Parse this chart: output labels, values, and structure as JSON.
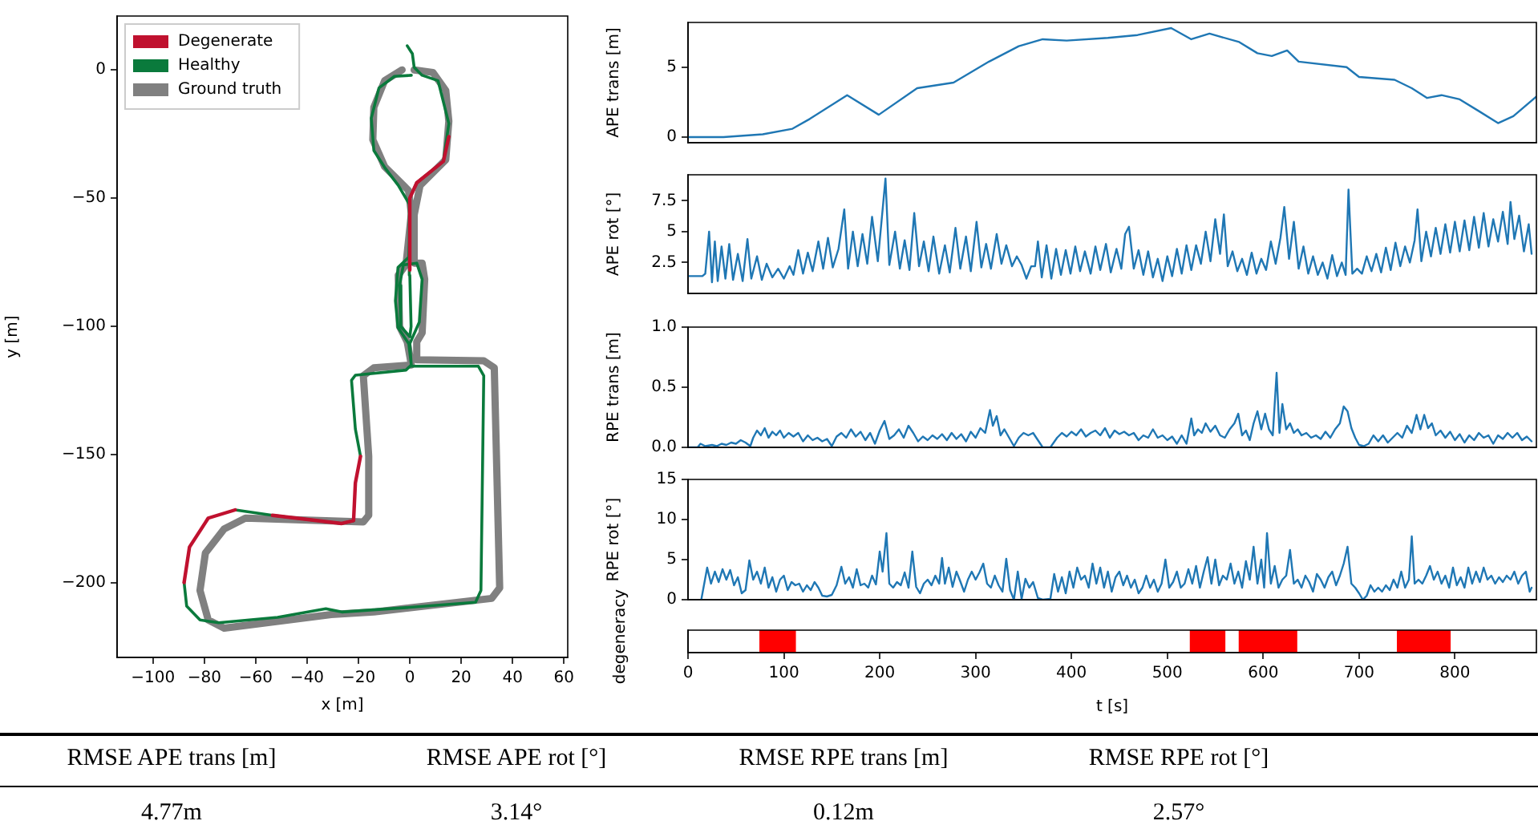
{
  "chart_data": [
    {
      "type": "line",
      "xlabel": "x [m]",
      "ylabel": "y [m]",
      "legend": "top left",
      "xlim": [
        -114,
        61.5
      ],
      "ylim": [
        -229,
        21
      ],
      "xticks": [
        {
          "value": -100,
          "label": "−100"
        },
        {
          "value": -80,
          "label": "−80"
        },
        {
          "value": -60,
          "label": "−60"
        },
        {
          "value": -40,
          "label": "−40"
        },
        {
          "value": -20,
          "label": "−20"
        },
        0,
        20,
        40,
        60
      ],
      "yticks": [
        {
          "value": -200,
          "label": "−200"
        },
        {
          "value": -150,
          "label": "−150"
        },
        {
          "value": -100,
          "label": "−100"
        },
        {
          "value": -50,
          "label": "−50"
        },
        0
      ],
      "series": [
        {
          "name": "Degenerate",
          "color": "#c0112f",
          "x": [
            15.2,
            13.1,
            2.7,
            0,
            0
          ],
          "values": [
            -26,
            -35.6,
            -44,
            -50,
            -78
          ]
        },
        {
          "color": "#c0112f",
          "x": [
            -19.2,
            -21.2,
            -21.9,
            -26.5,
            -53.5
          ],
          "values": [
            -150.6,
            -161,
            -175.7,
            -176.8,
            -173.6
          ]
        },
        {
          "color": "#c0112f",
          "x": [
            -68,
            -78.5,
            -85.8,
            -87.9
          ],
          "values": [
            -171.5,
            -174.7,
            -186,
            -199.8
          ]
        },
        {
          "name": "Healthy",
          "color": "#0a7a3c",
          "x": [
            -1.0,
            1.0,
            1.7,
            4.8,
            11,
            15.2,
            13.1,
            2.7,
            0,
            0,
            -0.4,
            -4.6,
            -5.6,
            -4.6,
            -0.4,
            0.6,
            -1.5,
            -21.2,
            -22.7,
            -21.2,
            -19.2,
            -21.2,
            -21.9,
            -26.5,
            -53.5,
            -68,
            -78.5,
            -85.8,
            -87.9,
            -86.9,
            -81.7,
            -74.4,
            -51.5,
            -32.7,
            -26.5,
            -1.5,
            25.6,
            27.7,
            28.8,
            26.7,
            0.6,
            0,
            3.7,
            4.8,
            2.7,
            -2.5,
            -4,
            -3.5,
            0,
            0.5,
            0,
            -0.2,
            -4.5,
            -9.8,
            -14,
            -15,
            -12,
            -6,
            0.6
          ],
          "values": [
            9.4,
            6.3,
            1.0,
            -2.1,
            -4.2,
            -20.9,
            -35.6,
            -44,
            -50,
            -60.7,
            -73,
            -77,
            -90,
            -100.4,
            -106.7,
            -115,
            -117,
            -119,
            -121,
            -140,
            -150.6,
            null,
            -175.7,
            -176.8,
            -173.6,
            -171.5,
            null,
            null,
            -199.8,
            -209,
            -214.4,
            -215.5,
            -213.4,
            -210,
            -211.3,
            -209.6,
            -207.5,
            -202.9,
            -119.2,
            -115.5,
            -115.5,
            -106.7,
            -98.3,
            -81.6,
            -75.3,
            -76,
            -84,
            -100,
            -104,
            -100,
            -80,
            -52.3,
            -45,
            -38,
            -31.4,
            -18.8,
            -7,
            -2.5,
            -2.1
          ]
        },
        {
          "name": "Ground truth",
          "color": "#808080",
          "x": [
            1.7,
            9,
            14,
            15.2,
            14,
            4,
            1.7,
            1.7,
            4.8,
            5.8,
            4.8,
            2.7,
            2.7,
            28.8,
            32.9,
            35,
            31.9,
            -14,
            -30.6,
            -72.3,
            -78.5,
            -81.7,
            -79.6,
            -72.3,
            -64,
            -18.1,
            -16,
            -16,
            -18.1,
            -14,
            0.6,
            -1,
            -4,
            -4.5,
            -1.5,
            0.6,
            -0.5,
            -9.8,
            -14.4,
            -14,
            -9.8,
            -3
          ],
          "values": [
            0,
            -1,
            -8,
            -20,
            -35,
            -45,
            -56.5,
            -75.3,
            -75.3,
            -81.6,
            -102.5,
            -106,
            -113,
            -113.4,
            -116.1,
            -201.9,
            -206,
            -211.3,
            -212.3,
            -217.6,
            -214.4,
            -202.9,
            -188.3,
            -178.9,
            -174.7,
            -176.2,
            -173.6,
            -150.6,
            -119.2,
            -116.1,
            -115,
            -106,
            -100,
            -80,
            -76,
            -56,
            -47,
            -37.7,
            -27.2,
            -14.6,
            -4.2,
            0
          ]
        }
      ]
    },
    {
      "type": "line",
      "ylabel": "APE trans [m]",
      "tick_labels": "y",
      "color": "#1f77b4",
      "xlim": [
        0,
        885
      ],
      "ylim": [
        -0.4,
        8.2
      ],
      "yticks": [
        0,
        5
      ],
      "x": [
        0,
        37,
        78,
        109,
        127,
        166,
        199,
        239,
        277,
        314,
        345,
        370,
        395,
        438,
        469,
        504,
        525,
        544,
        575,
        594,
        609,
        625,
        637,
        687,
        700,
        737,
        755,
        771,
        786,
        805,
        824,
        845,
        861,
        885
      ],
      "values": [
        0,
        0,
        0.2,
        0.6,
        1.3,
        3.0,
        1.6,
        3.5,
        3.9,
        5.4,
        6.5,
        7.0,
        6.9,
        7.1,
        7.3,
        7.8,
        7.0,
        7.4,
        6.8,
        6.0,
        5.8,
        6.2,
        5.4,
        5.0,
        4.3,
        4.1,
        3.5,
        2.8,
        3.0,
        2.7,
        1.9,
        1.0,
        1.5,
        2.9
      ]
    },
    {
      "type": "line",
      "ylabel": "APE rot [°]",
      "tick_labels": "y",
      "color": "#1f77b4",
      "xlim": [
        0,
        885
      ],
      "ylim": [
        0,
        9.6
      ],
      "yticks": [
        2.5,
        5.0,
        7.5
      ],
      "x": [
        0,
        15,
        18,
        22,
        25,
        28,
        31,
        35,
        39,
        43,
        47,
        52,
        57,
        62,
        66,
        72,
        77,
        82,
        88,
        94,
        100,
        106,
        110,
        115,
        120,
        125,
        130,
        136,
        141,
        146,
        151,
        157,
        163,
        167,
        172,
        177,
        182,
        187,
        192,
        198,
        206,
        210,
        216,
        221,
        226,
        231,
        236,
        241,
        246,
        251,
        256,
        262,
        268,
        273,
        279,
        284,
        290,
        295,
        301,
        306,
        311,
        316,
        322,
        327,
        332,
        338,
        343,
        348,
        353,
        358,
        362,
        365,
        369,
        374,
        379,
        384,
        389,
        394,
        399,
        404,
        409,
        414,
        420,
        425,
        430,
        436,
        441,
        447,
        452,
        456,
        460,
        465,
        470,
        475,
        480,
        485,
        490,
        495,
        500,
        505,
        510,
        515,
        520,
        525,
        530,
        535,
        540,
        545,
        550,
        555,
        559,
        563,
        568,
        573,
        578,
        583,
        588,
        593,
        598,
        603,
        608,
        613,
        618,
        622,
        627,
        632,
        637,
        642,
        647,
        652,
        657,
        662,
        667,
        672,
        677,
        682,
        686,
        689,
        693,
        698,
        703,
        708,
        713,
        718,
        723,
        728,
        733,
        738,
        743,
        748,
        753,
        758,
        761,
        765,
        770,
        775,
        780,
        785,
        790,
        795,
        800,
        805,
        810,
        815,
        820,
        825,
        830,
        835,
        840,
        845,
        850,
        855,
        858,
        862,
        867,
        872,
        877,
        880
      ],
      "values": [
        1.4,
        1.4,
        1.6,
        5.0,
        0.9,
        4.2,
        1.0,
        3.8,
        1.2,
        4.0,
        1.1,
        3.2,
        1.0,
        4.4,
        1.2,
        3.0,
        1.1,
        2.4,
        1.3,
        2.0,
        1.2,
        2.2,
        1.5,
        3.5,
        1.6,
        3.3,
        1.8,
        4.2,
        2.0,
        4.5,
        2.1,
        3.6,
        6.8,
        2.0,
        5.0,
        2.2,
        4.8,
        2.4,
        6.2,
        2.6,
        9.3,
        2.3,
        5.0,
        2.0,
        4.3,
        1.9,
        6.5,
        2.2,
        4.2,
        1.8,
        4.6,
        1.6,
        3.9,
        1.7,
        5.3,
        2.0,
        4.6,
        1.8,
        5.8,
        2.1,
        4.0,
        2.0,
        4.8,
        2.4,
        3.9,
        2.2,
        3.0,
        2.3,
        1.2,
        2.2,
        2.2,
        4.2,
        1.3,
        3.9,
        1.2,
        3.6,
        1.5,
        3.5,
        1.6,
        3.8,
        1.8,
        3.4,
        1.6,
        3.8,
        1.9,
        4.0,
        1.7,
        3.6,
        2.0,
        4.8,
        5.4,
        2.0,
        3.5,
        1.5,
        3.4,
        1.3,
        2.8,
        1.0,
        3.0,
        1.4,
        3.6,
        1.6,
        3.9,
        1.9,
        3.9,
        2.4,
        5.0,
        2.6,
        6.0,
        3.2,
        6.4,
        2.2,
        3.4,
        1.8,
        2.8,
        1.5,
        3.3,
        1.6,
        2.8,
        1.9,
        4.2,
        2.4,
        4.5,
        7.0,
        2.8,
        5.8,
        2.0,
        3.8,
        1.6,
        3.0,
        1.5,
        2.5,
        1.2,
        3.1,
        1.4,
        2.5,
        1.5,
        8.4,
        1.6,
        2.0,
        1.6,
        3.0,
        1.8,
        3.2,
        1.7,
        3.7,
        1.9,
        4.1,
        2.2,
        3.8,
        2.5,
        4.3,
        6.8,
        2.6,
        5.0,
        3.0,
        5.3,
        3.2,
        5.6,
        3.3,
        5.8,
        3.4,
        5.9,
        3.5,
        6.2,
        3.7,
        6.5,
        3.8,
        6.0,
        4.2,
        6.6,
        4.0,
        7.4,
        4.4,
        6.3,
        3.4,
        5.6,
        3.2
      ]
    },
    {
      "type": "line",
      "ylabel": "RPE trans [m]",
      "tick_labels": "y",
      "color": "#1f77b4",
      "xlim": [
        0,
        885
      ],
      "ylim": [
        0,
        1
      ],
      "yticks": [
        {
          "value": 0,
          "label": "0.0"
        },
        0.5,
        {
          "value": 1,
          "label": "1.0"
        }
      ],
      "x": [
        0,
        10,
        13,
        18,
        25,
        30,
        35,
        40,
        45,
        50,
        55,
        60,
        65,
        68,
        72,
        76,
        80,
        84,
        88,
        92,
        96,
        100,
        105,
        110,
        115,
        120,
        125,
        130,
        135,
        140,
        145,
        150,
        155,
        160,
        165,
        170,
        175,
        180,
        185,
        190,
        195,
        200,
        205,
        210,
        215,
        220,
        225,
        230,
        235,
        240,
        245,
        250,
        255,
        260,
        265,
        270,
        275,
        280,
        285,
        290,
        295,
        300,
        305,
        310,
        315,
        318,
        322,
        326,
        330,
        335,
        340,
        345,
        350,
        355,
        360,
        365,
        370,
        378,
        385,
        390,
        395,
        400,
        405,
        410,
        415,
        420,
        425,
        430,
        435,
        440,
        445,
        450,
        455,
        460,
        465,
        470,
        475,
        480,
        485,
        490,
        495,
        500,
        505,
        510,
        515,
        520,
        525,
        528,
        532,
        536,
        540,
        545,
        550,
        555,
        560,
        565,
        570,
        574,
        578,
        582,
        586,
        590,
        594,
        598,
        602,
        606,
        610,
        614,
        617,
        620,
        624,
        628,
        632,
        636,
        640,
        645,
        650,
        655,
        660,
        665,
        670,
        675,
        680,
        684,
        688,
        692,
        696,
        700,
        705,
        710,
        715,
        720,
        725,
        730,
        735,
        740,
        745,
        750,
        755,
        760,
        764,
        768,
        772,
        776,
        780,
        785,
        790,
        795,
        800,
        805,
        810,
        815,
        820,
        825,
        830,
        835,
        840,
        845,
        850,
        855,
        860,
        865,
        870,
        875,
        880
      ],
      "values": [
        0.0,
        0.0,
        0.03,
        0.01,
        0.02,
        0.01,
        0.03,
        0.02,
        0.04,
        0.03,
        0.06,
        0.04,
        0.01,
        0.08,
        0.14,
        0.1,
        0.16,
        0.08,
        0.13,
        0.1,
        0.14,
        0.08,
        0.12,
        0.09,
        0.12,
        0.05,
        0.1,
        0.06,
        0.08,
        0.05,
        0.07,
        0.01,
        0.09,
        0.12,
        0.08,
        0.15,
        0.09,
        0.13,
        0.06,
        0.12,
        0.03,
        0.14,
        0.22,
        0.07,
        0.1,
        0.15,
        0.08,
        0.18,
        0.12,
        0.05,
        0.09,
        0.06,
        0.1,
        0.07,
        0.11,
        0.06,
        0.12,
        0.07,
        0.11,
        0.05,
        0.13,
        0.08,
        0.16,
        0.12,
        0.31,
        0.18,
        0.26,
        0.1,
        0.15,
        0.08,
        0.01,
        0.08,
        0.12,
        0.1,
        0.12,
        0.06,
        0.0,
        0.0,
        0.08,
        0.12,
        0.09,
        0.13,
        0.1,
        0.15,
        0.09,
        0.12,
        0.14,
        0.1,
        0.16,
        0.08,
        0.14,
        0.11,
        0.13,
        0.1,
        0.12,
        0.06,
        0.1,
        0.08,
        0.15,
        0.08,
        0.1,
        0.06,
        0.09,
        0.03,
        0.1,
        0.03,
        0.24,
        0.1,
        0.15,
        0.12,
        0.2,
        0.13,
        0.18,
        0.1,
        0.08,
        0.15,
        0.2,
        0.28,
        0.1,
        0.14,
        0.06,
        0.2,
        0.3,
        0.15,
        0.28,
        0.15,
        0.1,
        0.62,
        0.12,
        0.36,
        0.15,
        0.2,
        0.12,
        0.15,
        0.1,
        0.12,
        0.08,
        0.1,
        0.07,
        0.13,
        0.08,
        0.15,
        0.2,
        0.34,
        0.3,
        0.16,
        0.08,
        0.02,
        0.01,
        0.03,
        0.1,
        0.05,
        0.1,
        0.04,
        0.08,
        0.12,
        0.08,
        0.18,
        0.12,
        0.27,
        0.15,
        0.27,
        0.16,
        0.2,
        0.1,
        0.14,
        0.08,
        0.13,
        0.06,
        0.11,
        0.04,
        0.1,
        0.06,
        0.12,
        0.08,
        0.1,
        0.03,
        0.1,
        0.07,
        0.12,
        0.08,
        0.12,
        0.06,
        0.09,
        0.05
      ]
    },
    {
      "type": "line",
      "ylabel": "RPE rot [°]",
      "tick_labels": "y",
      "color": "#1f77b4",
      "xlim": [
        0,
        885
      ],
      "ylim": [
        0,
        15
      ],
      "yticks": [
        0,
        5,
        10,
        15
      ],
      "x": [
        14,
        20,
        24,
        28,
        32,
        36,
        40,
        44,
        48,
        52,
        56,
        60,
        64,
        68,
        72,
        76,
        80,
        84,
        88,
        92,
        96,
        100,
        104,
        108,
        112,
        116,
        120,
        124,
        128,
        132,
        136,
        140,
        145,
        150,
        155,
        160,
        164,
        168,
        172,
        176,
        180,
        184,
        188,
        192,
        196,
        200,
        203,
        207,
        210,
        214,
        218,
        222,
        226,
        230,
        234,
        238,
        242,
        246,
        250,
        254,
        258,
        262,
        265,
        268,
        272,
        276,
        280,
        284,
        288,
        292,
        296,
        300,
        304,
        308,
        312,
        316,
        320,
        324,
        328,
        332,
        336,
        340,
        344,
        348,
        352,
        356,
        360,
        365,
        370,
        378,
        382,
        386,
        390,
        394,
        398,
        402,
        406,
        410,
        414,
        418,
        422,
        426,
        430,
        434,
        438,
        442,
        446,
        450,
        454,
        458,
        462,
        466,
        470,
        474,
        478,
        482,
        486,
        490,
        494,
        498,
        502,
        506,
        510,
        514,
        518,
        522,
        526,
        530,
        534,
        538,
        542,
        546,
        550,
        554,
        558,
        562,
        566,
        570,
        574,
        578,
        582,
        586,
        590,
        594,
        598,
        601,
        604,
        608,
        612,
        616,
        620,
        624,
        628,
        632,
        636,
        640,
        644,
        648,
        652,
        656,
        660,
        664,
        668,
        672,
        676,
        680,
        684,
        688,
        692,
        696,
        700,
        704,
        708,
        712,
        716,
        720,
        724,
        728,
        732,
        736,
        740,
        744,
        748,
        752,
        755,
        758,
        762,
        766,
        770,
        774,
        778,
        782,
        786,
        790,
        794,
        798,
        802,
        806,
        810,
        814,
        818,
        822,
        826,
        830,
        834,
        838,
        842,
        846,
        850,
        854,
        858,
        862,
        866,
        870,
        874,
        878,
        880
      ],
      "values": [
        0.1,
        4.0,
        2.0,
        3.5,
        2.2,
        3.8,
        2.5,
        3.7,
        1.8,
        2.8,
        0.8,
        1.2,
        4.9,
        2.5,
        3.5,
        2.0,
        4.0,
        1.5,
        2.8,
        1.0,
        2.5,
        3.0,
        1.2,
        2.2,
        1.8,
        2.0,
        1.0,
        1.8,
        1.2,
        2.2,
        1.5,
        0.5,
        0.4,
        0.6,
        1.8,
        4.1,
        2.0,
        2.8,
        1.5,
        3.8,
        1.8,
        2.0,
        1.5,
        3.0,
        1.9,
        6.0,
        3.5,
        8.3,
        2.0,
        1.5,
        2.2,
        1.8,
        3.4,
        1.5,
        6.0,
        1.6,
        0.8,
        2.0,
        2.5,
        1.8,
        3.0,
        2.0,
        5.2,
        2.0,
        4.0,
        1.6,
        3.5,
        2.3,
        1.0,
        2.5,
        3.5,
        2.5,
        3.4,
        4.5,
        2.0,
        1.5,
        3.0,
        1.8,
        1.0,
        5.1,
        1.2,
        0.0,
        3.5,
        0.1,
        2.6,
        1.5,
        2.2,
        0.2,
        0.0,
        0.1,
        3.2,
        1.0,
        2.8,
        0.8,
        3.5,
        1.5,
        4.0,
        2.5,
        3.0,
        1.5,
        4.5,
        2.0,
        4.0,
        1.5,
        3.5,
        1.0,
        2.8,
        3.5,
        1.8,
        3.0,
        1.5,
        2.5,
        0.8,
        1.5,
        3.0,
        1.5,
        2.5,
        1.0,
        2.0,
        5.0,
        1.5,
        2.2,
        3.5,
        1.5,
        2.0,
        3.8,
        2.0,
        4.2,
        1.5,
        3.5,
        5.3,
        2.0,
        5.0,
        1.8,
        3.0,
        2.5,
        4.5,
        2.0,
        3.5,
        1.5,
        4.8,
        2.5,
        6.6,
        2.0,
        5.0,
        1.5,
        8.3,
        2.0,
        4.2,
        1.5,
        2.5,
        3.0,
        6.2,
        2.0,
        2.5,
        1.5,
        3.0,
        2.2,
        1.0,
        3.2,
        2.5,
        1.5,
        2.8,
        3.5,
        1.8,
        3.0,
        4.5,
        6.6,
        2.0,
        1.5,
        0.8,
        0.0,
        0.5,
        1.8,
        1.0,
        1.5,
        1.0,
        1.8,
        1.2,
        2.5,
        1.5,
        3.5,
        1.5,
        2.5,
        7.9,
        2.0,
        2.5,
        2.0,
        3.0,
        4.2,
        2.5,
        3.5,
        2.0,
        3.0,
        1.5,
        4.0,
        1.8,
        2.8,
        1.5,
        4.0,
        2.0,
        3.5,
        2.2,
        4.0,
        2.5,
        3.0,
        2.0,
        2.8,
        2.2,
        3.0,
        2.5,
        3.5,
        2.0,
        3.0,
        3.5,
        1.0,
        1.5
      ]
    },
    {
      "type": "bar",
      "orientation": "horizontal",
      "ylabel": "degeneracy",
      "xlabel": "t [s]",
      "xlim": [
        0,
        885
      ],
      "xticks": [
        0,
        100,
        200,
        300,
        400,
        500,
        600,
        700,
        800
      ],
      "categories": [
        null
      ],
      "stacked": false,
      "series": [
        {
          "color": "#ff0000",
          "values": [
            37
          ],
          "base": [
            75
          ]
        },
        {
          "color": "#ff0000",
          "values": [
            36
          ],
          "base": [
            524
          ]
        },
        {
          "color": "#ff0000",
          "values": [
            60
          ],
          "base": [
            575
          ]
        },
        {
          "color": "#ff0000",
          "values": [
            55
          ],
          "base": [
            740
          ]
        }
      ]
    },
    {
      "type": "other",
      "categories": [
        "RMSE APE trans [m]",
        "RMSE APE rot [°]",
        "RMSE RPE trans [m]",
        "RMSE RPE rot [°]"
      ],
      "value_labels": [
        "4.77m",
        "3.14°",
        "0.12m",
        "2.57°"
      ]
    }
  ]
}
